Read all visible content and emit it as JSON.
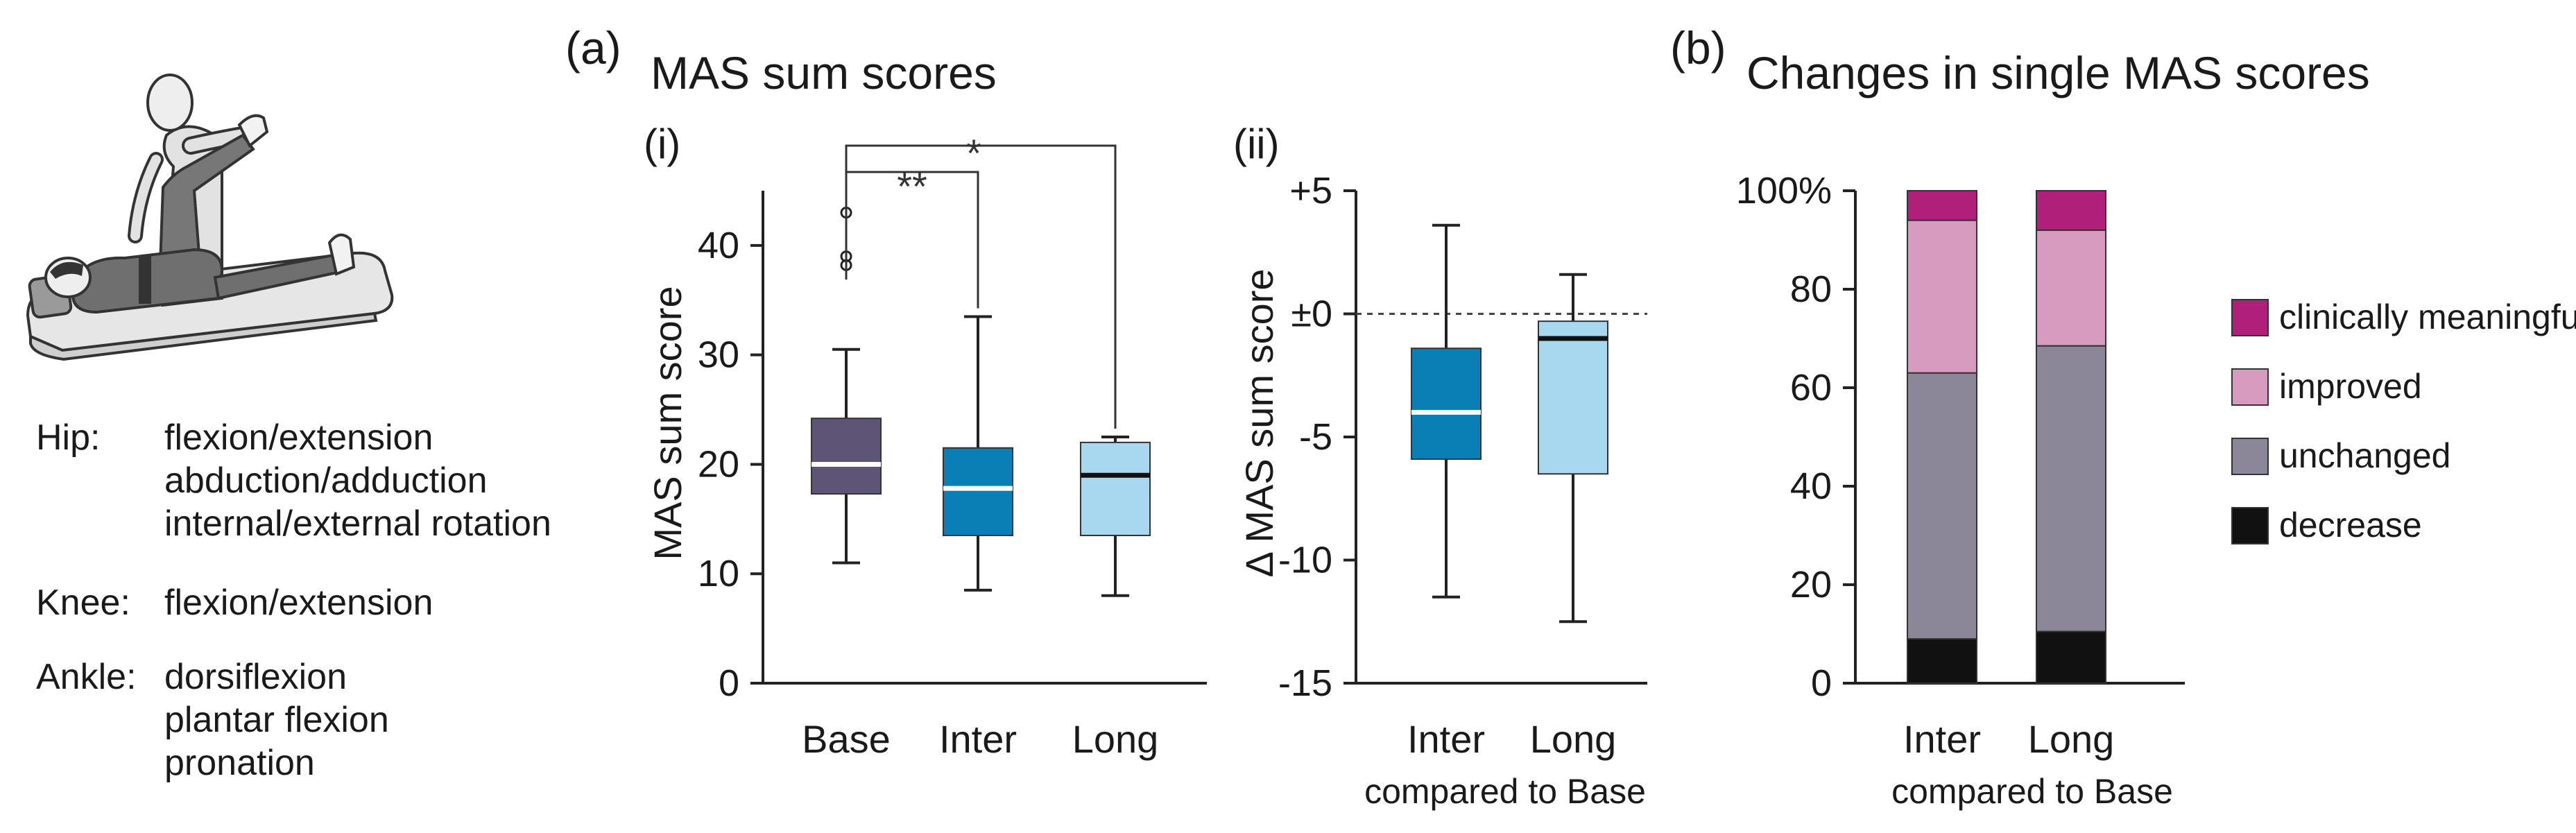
{
  "panel_a": {
    "label": "(a)",
    "title": "MAS sum scores"
  },
  "panel_b": {
    "label": "(b)",
    "title": "Changes in single MAS scores"
  },
  "joints": [
    {
      "name": "Hip:",
      "movements": [
        "flexion/extension",
        "abduction/adduction",
        "internal/external rotation"
      ]
    },
    {
      "name": "Knee:",
      "movements": [
        "flexion/extension"
      ]
    },
    {
      "name": "Ankle:",
      "movements": [
        "dorsiflexion",
        "plantar flexion",
        "pronation"
      ]
    }
  ],
  "colors": {
    "base": "#5e5475",
    "inter": "#0a7fb5",
    "long": "#a8d7f0",
    "unchanged": "#8c8798",
    "improved": "#d79bc0",
    "clinically_meaningful": "#b01f7a",
    "decrease": "#111111"
  },
  "chart_data": [
    {
      "id": "i",
      "label": "(i)",
      "type": "box",
      "ylabel": "MAS sum score",
      "ylim": [
        0,
        45
      ],
      "yticks": [
        "0",
        "10",
        "20",
        "30",
        "40"
      ],
      "tick_values": [
        0,
        10,
        20,
        30,
        40
      ],
      "categories": [
        "Base",
        "Inter",
        "Long"
      ],
      "boxes": [
        {
          "name": "Base",
          "min": 11,
          "q1": 17.3,
          "median": 20,
          "q3": 24.2,
          "max": 30.5,
          "median_color": "#ffffff",
          "outliers": [
            43,
            39,
            38.2
          ]
        },
        {
          "name": "Inter",
          "min": 8.5,
          "q1": 13.5,
          "median": 17.8,
          "q3": 21.5,
          "max": 33.5,
          "median_color": "#ffffff",
          "outliers": []
        },
        {
          "name": "Long",
          "min": 8,
          "q1": 13.5,
          "median": 19,
          "q3": 22,
          "max": 22.5,
          "median_color": "#111111",
          "outliers": []
        }
      ],
      "significance": [
        {
          "from": "Base",
          "to": "Inter",
          "label": "**"
        },
        {
          "from": "Base",
          "to": "Long",
          "label": "*"
        }
      ]
    },
    {
      "id": "ii",
      "label": "(ii)",
      "type": "box",
      "ylabel": "Δ MAS sum score",
      "ylim": [
        -15,
        5
      ],
      "yticks": [
        "-15",
        "-10",
        "-5",
        "±0",
        "+5"
      ],
      "tick_values": [
        -15,
        -10,
        -5,
        0,
        5
      ],
      "categories": [
        "Inter",
        "Long"
      ],
      "xsubtitle": "compared to Base",
      "boxes": [
        {
          "name": "Inter",
          "min": -11.5,
          "q1": -5.9,
          "median": -4,
          "q3": -1.4,
          "max": 3.6,
          "median_color": "#ffffff",
          "outliers": []
        },
        {
          "name": "Long",
          "min": -12.5,
          "q1": -6.5,
          "median": -1,
          "q3": -0.3,
          "max": 1.6,
          "median_color": "#111111",
          "outliers": []
        }
      ],
      "reference_line": 0
    },
    {
      "id": "b",
      "type": "bar",
      "stacked": true,
      "ylim": [
        0,
        100
      ],
      "yticks": [
        "0",
        "20",
        "40",
        "60",
        "80",
        "100%"
      ],
      "tick_values": [
        0,
        20,
        40,
        60,
        80,
        100
      ],
      "categories": [
        "Inter",
        "Long"
      ],
      "xsubtitle": "compared to Base",
      "series": [
        {
          "name": "decrease",
          "values": [
            9,
            10.5
          ]
        },
        {
          "name": "unchanged",
          "values": [
            54,
            58
          ]
        },
        {
          "name": "improved",
          "values": [
            31,
            23.5
          ]
        },
        {
          "name": "clinically meaningful",
          "values": [
            6,
            8
          ]
        }
      ],
      "legend": [
        "clinically meaningful",
        "improved",
        "unchanged",
        "decrease"
      ]
    }
  ]
}
